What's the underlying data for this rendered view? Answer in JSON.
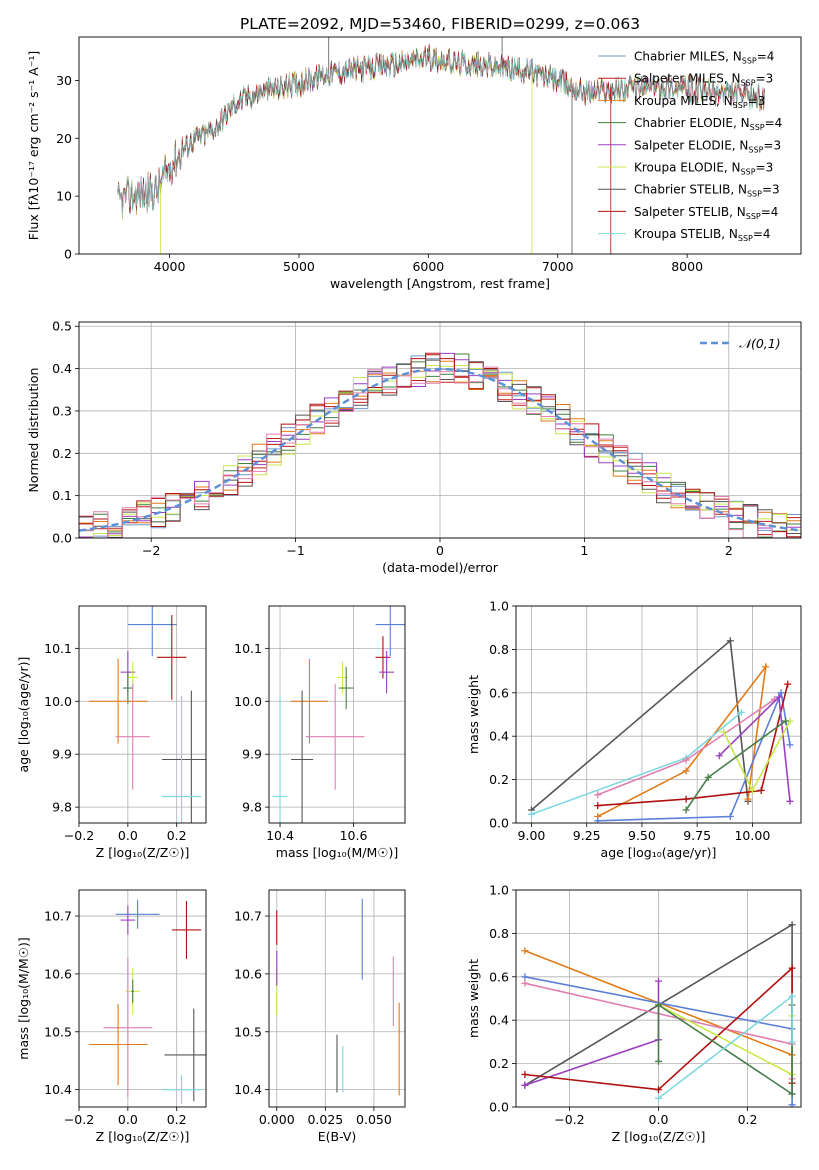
{
  "figure_title": "PLATE=2092, MJD=53460, FIBERID=0299, z=0.063",
  "colors": {
    "chabrier_miles": "#6f98c8",
    "salpeter_miles": "#c0201f",
    "kroupa_miles": "#e07b1a",
    "chabrier_elodie": "#3f7f3f",
    "salpeter_elodie": "#9b3fc0",
    "kroupa_elodie": "#c8e84a",
    "chabrier_stelib": "#555555",
    "salpeter_stelib": "#b01010",
    "kroupa_stelib": "#7fd8e0",
    "blue": "#5b7fd8",
    "orange": "#e07b1a",
    "green": "#4a7f4a",
    "purple": "#9b3fc0",
    "pink": "#e07fb0",
    "lime": "#c8e84a",
    "gray": "#555555",
    "red": "#b01010",
    "cyan": "#7fd8e0"
  },
  "chart_data": [
    {
      "id": "spectrum",
      "type": "line",
      "xlabel": "wavelength [Angstrom, rest frame]",
      "ylabel": "Flux [fλ10⁻¹⁷ erg cm⁻² s⁻¹ A⁻¹]",
      "xlim": [
        3300,
        8880
      ],
      "ylim": [
        0,
        37.5
      ],
      "xticks": [
        "4000",
        "5000",
        "6000",
        "7000",
        "8000"
      ],
      "yticks": [
        "0",
        "10",
        "20",
        "30"
      ],
      "grid": false,
      "legend_position": "top-right",
      "continuum": {
        "x": [
          3600,
          3700,
          3800,
          3900,
          4000,
          4100,
          4200,
          4300,
          4400,
          4500,
          4600,
          4800,
          5000,
          5200,
          5500,
          5800,
          6000,
          6200,
          6500,
          6800,
          7000,
          7200,
          7500,
          7800,
          8000,
          8200,
          8400,
          8600
        ],
        "y": [
          9,
          10,
          10.5,
          11,
          15,
          18,
          20,
          21,
          23,
          26,
          27,
          28.5,
          29.5,
          31,
          32,
          33,
          34,
          33,
          32.5,
          31.5,
          30,
          28,
          28.5,
          29,
          28.5,
          28,
          27.5,
          27
        ]
      },
      "series": [
        {
          "name": "Chabrier MILES, N_SSP=4",
          "label_main": "Chabrier MILES, N",
          "label_sub": "SSP",
          "label_tail": "=4",
          "color_key": "chabrier_miles",
          "seed": 1
        },
        {
          "name": "Salpeter MILES, N_SSP=3",
          "label_main": "Salpeter MILES, N",
          "label_sub": "SSP",
          "label_tail": "=3",
          "color_key": "salpeter_miles",
          "seed": 2
        },
        {
          "name": "Kroupa MILES, N_SSP=3",
          "label_main": "Kroupa MILES, N",
          "label_sub": "SSP",
          "label_tail": "=3",
          "color_key": "kroupa_miles",
          "seed": 3
        },
        {
          "name": "Chabrier ELODIE, N_SSP=4",
          "label_main": "Chabrier ELODIE, N",
          "label_sub": "SSP",
          "label_tail": "=4",
          "color_key": "chabrier_elodie",
          "seed": 4
        },
        {
          "name": "Salpeter ELODIE, N_SSP=3",
          "label_main": "Salpeter ELODIE, N",
          "label_sub": "SSP",
          "label_tail": "=3",
          "color_key": "salpeter_elodie",
          "seed": 5
        },
        {
          "name": "Kroupa ELODIE, N_SSP=3",
          "label_main": "Kroupa ELODIE, N",
          "label_sub": "SSP",
          "label_tail": "=3",
          "color_key": "kroupa_elodie",
          "seed": 6
        },
        {
          "name": "Chabrier STELIB, N_SSP=3",
          "label_main": "Chabrier STELIB, N",
          "label_sub": "SSP",
          "label_tail": "=3",
          "color_key": "chabrier_stelib",
          "seed": 7
        },
        {
          "name": "Salpeter STELIB, N_SSP=4",
          "label_main": "Salpeter STELIB, N",
          "label_sub": "SSP",
          "label_tail": "=4",
          "color_key": "salpeter_stelib",
          "seed": 8
        },
        {
          "name": "Kroupa STELIB, N_SSP=4",
          "label_main": "Kroupa STELIB, N",
          "label_sub": "SSP",
          "label_tail": "=4",
          "color_key": "kroupa_stelib",
          "seed": 9
        }
      ]
    },
    {
      "id": "residuals",
      "type": "bar",
      "xlabel": "(data-model)/error",
      "ylabel": "Normed distribution",
      "xlim": [
        -2.5,
        2.5
      ],
      "ylim": [
        0,
        0.51
      ],
      "xticks": [
        "−2",
        "−1",
        "0",
        "1",
        "2"
      ],
      "yticks": [
        "0.0",
        "0.1",
        "0.2",
        "0.3",
        "0.4",
        "0.5"
      ],
      "grid": true,
      "legend_position": "top-right",
      "legend_label": "𝒩(0,1)",
      "bin_width": 0.1,
      "series_color_keys": [
        "chabrier_miles",
        "salpeter_miles",
        "kroupa_miles",
        "chabrier_elodie",
        "salpeter_elodie",
        "kroupa_elodie",
        "chabrier_stelib",
        "salpeter_stelib",
        "pink"
      ]
    },
    {
      "id": "age_vs_Z",
      "type": "scatter",
      "xlabel": "Z [log₁₀(Z/Z☉)]",
      "ylabel": "age [log₁₀(age/yr)]",
      "xlim": [
        -0.2,
        0.32
      ],
      "ylim": [
        9.77,
        10.18
      ],
      "xticks": [
        "−0.2",
        "0.0",
        "0.2"
      ],
      "yticks": [
        "9.8",
        "9.9",
        "10.0",
        "10.1"
      ],
      "grid": true,
      "points": [
        {
          "x": 0.1,
          "y": 10.145,
          "ex": 0.1,
          "ey": 0.06,
          "color_key": "blue"
        },
        {
          "x": 0.18,
          "y": 10.083,
          "ex": 0.06,
          "ey": 0.08,
          "color_key": "red"
        },
        {
          "x": 0.0,
          "y": 10.055,
          "ex": 0.03,
          "ey": 0.04,
          "color_key": "purple"
        },
        {
          "x": 0.02,
          "y": 10.045,
          "ex": 0.02,
          "ey": 0.03,
          "color_key": "lime"
        },
        {
          "x": 0.0,
          "y": 10.025,
          "ex": 0.02,
          "ey": 0.03,
          "color_key": "green"
        },
        {
          "x": -0.04,
          "y": 10.0,
          "ex": 0.12,
          "ey": 0.08,
          "color_key": "orange"
        },
        {
          "x": 0.02,
          "y": 9.933,
          "ex": 0.07,
          "ey": 0.1,
          "color_key": "pink"
        },
        {
          "x": 0.26,
          "y": 9.89,
          "ex": 0.12,
          "ey": 0.13,
          "color_key": "gray"
        },
        {
          "x": 0.22,
          "y": 9.82,
          "ex": 0.08,
          "ey": 0.19,
          "color_key": "cyan"
        }
      ]
    },
    {
      "id": "age_vs_mass",
      "type": "scatter",
      "xlabel": "mass [log₁₀(M/M☉)]",
      "ylabel": "",
      "xlim": [
        10.37,
        10.74
      ],
      "ylim": [
        9.77,
        10.18
      ],
      "xticks": [
        "10.4",
        "10.6"
      ],
      "yticks": [
        "9.8",
        "9.9",
        "10.0",
        "10.1"
      ],
      "grid": true,
      "points": [
        {
          "x": 10.7,
          "y": 10.145,
          "ex": 0.04,
          "ey": 0.06,
          "color_key": "blue"
        },
        {
          "x": 10.68,
          "y": 10.083,
          "ex": 0.02,
          "ey": 0.04,
          "color_key": "red"
        },
        {
          "x": 10.69,
          "y": 10.055,
          "ex": 0.02,
          "ey": 0.04,
          "color_key": "purple"
        },
        {
          "x": 10.57,
          "y": 10.045,
          "ex": 0.015,
          "ey": 0.03,
          "color_key": "lime"
        },
        {
          "x": 10.58,
          "y": 10.025,
          "ex": 0.02,
          "ey": 0.04,
          "color_key": "green"
        },
        {
          "x": 10.48,
          "y": 10.0,
          "ex": 0.05,
          "ey": 0.08,
          "color_key": "orange"
        },
        {
          "x": 10.55,
          "y": 9.933,
          "ex": 0.08,
          "ey": 0.1,
          "color_key": "pink"
        },
        {
          "x": 10.46,
          "y": 9.89,
          "ex": 0.03,
          "ey": 0.13,
          "color_key": "gray"
        },
        {
          "x": 10.4,
          "y": 9.82,
          "ex": 0.02,
          "ey": 0.19,
          "color_key": "cyan"
        }
      ]
    },
    {
      "id": "massweight_vs_age",
      "type": "line",
      "xlabel": "age [log₁₀(age/yr)]",
      "ylabel": "mass weight",
      "xlim": [
        8.93,
        10.22
      ],
      "ylim": [
        0,
        1.0
      ],
      "xticks": [
        "9.00",
        "9.25",
        "9.50",
        "9.75",
        "10.00"
      ],
      "xtick_values": [
        9.0,
        9.25,
        9.5,
        9.75,
        10.0
      ],
      "yticks": [
        "0.0",
        "0.2",
        "0.4",
        "0.6",
        "0.8",
        "1.0"
      ],
      "grid": true,
      "series": [
        {
          "color_key": "gray",
          "x": [
            9.0,
            9.9,
            9.98
          ],
          "y": [
            0.06,
            0.84,
            0.1
          ]
        },
        {
          "color_key": "orange",
          "x": [
            9.3,
            9.7,
            10.06,
            9.98
          ],
          "y": [
            0.03,
            0.24,
            0.72,
            0.11
          ]
        },
        {
          "color_key": "blue",
          "x": [
            9.3,
            9.9,
            10.13,
            10.17
          ],
          "y": [
            0.01,
            0.03,
            0.6,
            0.36
          ]
        },
        {
          "color_key": "cyan",
          "x": [
            9.0,
            9.7,
            9.95
          ],
          "y": [
            0.04,
            0.3,
            0.51
          ]
        },
        {
          "color_key": "pink",
          "x": [
            9.3,
            9.7,
            10.1
          ],
          "y": [
            0.13,
            0.29,
            0.57
          ]
        },
        {
          "color_key": "red",
          "x": [
            9.3,
            9.7,
            10.04,
            10.16
          ],
          "y": [
            0.08,
            0.11,
            0.15,
            0.64
          ]
        },
        {
          "color_key": "purple",
          "x": [
            9.85,
            10.12,
            10.17
          ],
          "y": [
            0.31,
            0.58,
            0.1
          ]
        },
        {
          "color_key": "lime",
          "x": [
            9.87,
            10.0,
            10.17
          ],
          "y": [
            0.42,
            0.15,
            0.47
          ]
        },
        {
          "color_key": "green",
          "x": [
            9.7,
            9.8,
            10.15
          ],
          "y": [
            0.06,
            0.21,
            0.47
          ]
        }
      ]
    },
    {
      "id": "mass_vs_Z",
      "type": "scatter",
      "xlabel": "Z [log₁₀(Z/Z☉)]",
      "ylabel": "mass [log₁₀(M/M☉)]",
      "xlim": [
        -0.2,
        0.32
      ],
      "ylim": [
        10.37,
        10.745
      ],
      "xticks": [
        "−0.2",
        "0.0",
        "0.2"
      ],
      "yticks": [
        "10.4",
        "10.5",
        "10.6",
        "10.7"
      ],
      "grid": true,
      "points": [
        {
          "x": 0.04,
          "y": 10.703,
          "ex": 0.09,
          "ey": 0.025,
          "color_key": "blue"
        },
        {
          "x": 0.0,
          "y": 10.693,
          "ex": 0.03,
          "ey": 0.025,
          "color_key": "purple"
        },
        {
          "x": 0.24,
          "y": 10.676,
          "ex": 0.06,
          "ey": 0.05,
          "color_key": "red"
        },
        {
          "x": 0.02,
          "y": 10.57,
          "ex": 0.03,
          "ey": 0.04,
          "color_key": "lime"
        },
        {
          "x": 0.02,
          "y": 10.57,
          "ex": 0.005,
          "ey": 0.02,
          "color_key": "green"
        },
        {
          "x": 0.0,
          "y": 10.507,
          "ex": 0.1,
          "ey": 0.12,
          "color_key": "pink"
        },
        {
          "x": -0.04,
          "y": 10.478,
          "ex": 0.12,
          "ey": 0.07,
          "color_key": "orange"
        },
        {
          "x": 0.27,
          "y": 10.46,
          "ex": 0.12,
          "ey": 0.08,
          "color_key": "gray"
        },
        {
          "x": 0.22,
          "y": 10.4,
          "ex": 0.08,
          "ey": 0.025,
          "color_key": "cyan"
        }
      ]
    },
    {
      "id": "mass_vs_EBV",
      "type": "scatter",
      "xlabel": "E(B-V)",
      "ylabel": "",
      "xlim": [
        -0.004,
        0.066
      ],
      "ylim": [
        10.37,
        10.745
      ],
      "xticks": [
        "0.000",
        "0.025",
        "0.050"
      ],
      "xtick_values": [
        0.0,
        0.025,
        0.05
      ],
      "yticks": [
        "10.4",
        "10.5",
        "10.6",
        "10.7"
      ],
      "grid": true,
      "points": [
        {
          "x": 0.0,
          "y": 10.68,
          "ex": 0.0,
          "ey": 0.03,
          "color_key": "red"
        },
        {
          "x": 0.0,
          "y": 10.57,
          "ex": 0.0,
          "ey": 0.04,
          "color_key": "lime"
        },
        {
          "x": 0.0,
          "y": 10.61,
          "ex": 0.0,
          "ey": 0.03,
          "color_key": "purple"
        },
        {
          "x": 0.044,
          "y": 10.66,
          "ex": 0.0,
          "ey": 0.07,
          "color_key": "blue"
        },
        {
          "x": 0.06,
          "y": 10.57,
          "ex": 0.0,
          "ey": 0.06,
          "color_key": "pink"
        },
        {
          "x": 0.063,
          "y": 10.47,
          "ex": 0.0,
          "ey": 0.08,
          "color_key": "orange"
        },
        {
          "x": 0.031,
          "y": 10.445,
          "ex": 0.0,
          "ey": 0.05,
          "color_key": "gray"
        },
        {
          "x": 0.034,
          "y": 10.435,
          "ex": 0.0,
          "ey": 0.04,
          "color_key": "cyan"
        }
      ]
    },
    {
      "id": "massweight_vs_Z",
      "type": "line",
      "xlabel": "Z [log₁₀(Z/Z☉)]",
      "ylabel": "mass weight",
      "xlim": [
        -0.32,
        0.32
      ],
      "ylim": [
        0,
        1.0
      ],
      "xticks": [
        "−0.2",
        "0.0",
        "0.2"
      ],
      "xtick_values": [
        -0.2,
        0.0,
        0.2
      ],
      "yticks": [
        "0.0",
        "0.2",
        "0.4",
        "0.6",
        "0.8",
        "1.0"
      ],
      "grid": true,
      "series": [
        {
          "color_key": "gray",
          "x": [
            -0.3,
            0.3,
            0.3
          ],
          "y": [
            0.1,
            0.84,
            0.06
          ]
        },
        {
          "color_key": "orange",
          "x": [
            -0.3,
            0.3,
            0.3
          ],
          "y": [
            0.72,
            0.24,
            0.11
          ]
        },
        {
          "color_key": "blue",
          "x": [
            -0.3,
            0.3,
            0.3
          ],
          "y": [
            0.6,
            0.36,
            0.01
          ]
        },
        {
          "color_key": "pink",
          "x": [
            -0.3,
            0.3,
            0.3
          ],
          "y": [
            0.57,
            0.29,
            0.13
          ]
        },
        {
          "color_key": "purple",
          "x": [
            -0.3,
            0.0,
            0.0
          ],
          "y": [
            0.1,
            0.31,
            0.58
          ]
        },
        {
          "color_key": "red",
          "x": [
            -0.3,
            0.0,
            0.3,
            0.3
          ],
          "y": [
            0.15,
            0.08,
            0.64,
            0.11
          ]
        },
        {
          "color_key": "lime",
          "x": [
            0.0,
            0.3,
            0.3
          ],
          "y": [
            0.47,
            0.15,
            0.42
          ]
        },
        {
          "color_key": "green",
          "x": [
            0.0,
            0.0,
            0.3,
            0.3
          ],
          "y": [
            0.21,
            0.47,
            0.06,
            0.47
          ]
        },
        {
          "color_key": "cyan",
          "x": [
            0.0,
            0.3,
            0.3
          ],
          "y": [
            0.04,
            0.51,
            0.3
          ]
        }
      ]
    }
  ]
}
